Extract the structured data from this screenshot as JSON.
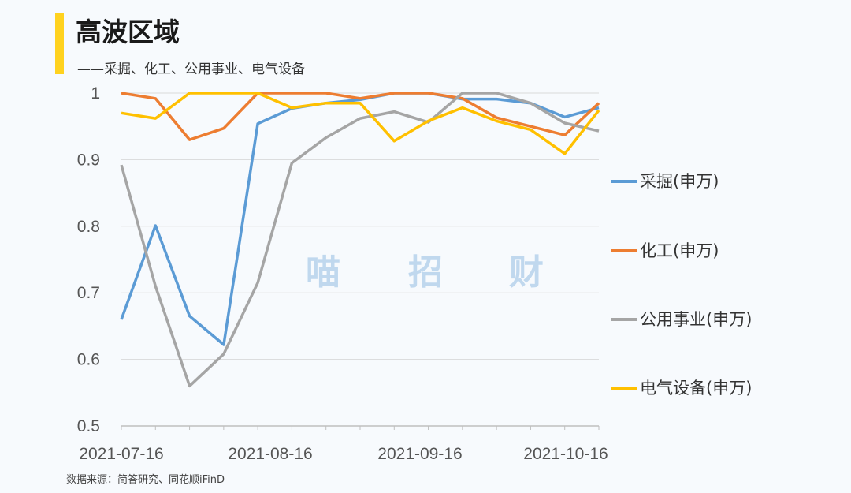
{
  "title": "高波区域",
  "subtitle": "——采掘、化工、公用事业、电气设备",
  "source": "数据来源：简答研究、同花顺iFinD",
  "watermark": [
    "喵",
    "招",
    "财"
  ],
  "colors": {
    "accent": "#ffd21f"
  },
  "chart_data": {
    "type": "line",
    "x": [
      "2021-07-16",
      "2021-07-23",
      "2021-07-30",
      "2021-08-06",
      "2021-08-13",
      "2021-08-20",
      "2021-08-27",
      "2021-09-03",
      "2021-09-10",
      "2021-09-17",
      "2021-09-24",
      "2021-10-01",
      "2021-10-08",
      "2021-10-15",
      "2021-10-22"
    ],
    "x_tick_labels": [
      "2021-07-16",
      "2021-08-16",
      "2021-09-16",
      "2021-10-16"
    ],
    "ylim": [
      0.5,
      1
    ],
    "y_ticks": [
      "0.5",
      "0.6",
      "0.7",
      "0.8",
      "0.9",
      "1"
    ],
    "grid": true,
    "legend_position": "right",
    "series": [
      {
        "name": "采掘(申万)",
        "color": "#5b9bd5",
        "values": [
          0.66,
          0.801,
          0.665,
          0.622,
          0.954,
          0.977,
          0.985,
          0.99,
          1.0,
          1.0,
          0.991,
          0.991,
          0.985,
          0.964,
          0.978
        ]
      },
      {
        "name": "化工(申万)",
        "color": "#ed7d31",
        "values": [
          1.0,
          0.992,
          0.93,
          0.947,
          1.0,
          1.0,
          1.0,
          0.992,
          1.0,
          1.0,
          0.992,
          0.963,
          0.95,
          0.937,
          0.985
        ]
      },
      {
        "name": "公用事业(申万)",
        "color": "#a5a5a5",
        "values": [
          0.892,
          0.71,
          0.56,
          0.608,
          0.715,
          0.895,
          0.933,
          0.962,
          0.972,
          0.956,
          1.0,
          1.0,
          0.985,
          0.955,
          0.943
        ]
      },
      {
        "name": "电气设备(申万)",
        "color": "#ffc000",
        "values": [
          0.97,
          0.962,
          1.0,
          1.0,
          1.0,
          0.978,
          0.985,
          0.985,
          0.928,
          0.958,
          0.978,
          0.958,
          0.945,
          0.909,
          0.974
        ]
      }
    ]
  }
}
